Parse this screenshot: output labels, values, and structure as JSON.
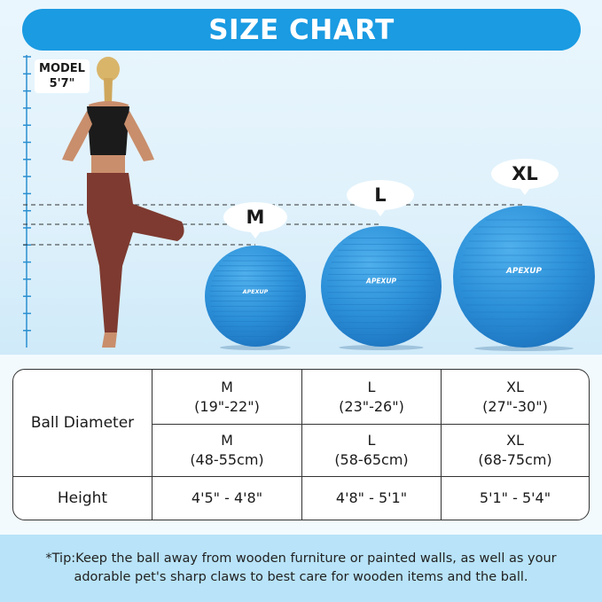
{
  "banner": {
    "title": "SIZE CHART"
  },
  "model": {
    "label": "MODEL",
    "height": "5'7\""
  },
  "balls": [
    {
      "size": "M",
      "brand": "APEXUP"
    },
    {
      "size": "L",
      "brand": "APEXUP"
    },
    {
      "size": "XL",
      "brand": "APEXUP"
    }
  ],
  "table": {
    "row_headers": [
      "Ball Diameter",
      "Height"
    ],
    "inches": [
      {
        "size": "M",
        "range": "(19\"-22\")"
      },
      {
        "size": "L",
        "range": "(23\"-26\")"
      },
      {
        "size": "XL",
        "range": "(27\"-30\")"
      }
    ],
    "cm": [
      {
        "size": "M",
        "range": "(48-55cm)"
      },
      {
        "size": "L",
        "range": "(58-65cm)"
      },
      {
        "size": "XL",
        "range": "(68-75cm)"
      }
    ],
    "heights": [
      "4'5\" - 4'8\"",
      "4'8\" - 5'1\"",
      "5'1\" - 5'4\""
    ]
  },
  "tip": "*Tip:Keep the ball away from wooden furniture or painted walls, as well as your adorable pet's sharp claws to best care for wooden items and the ball.",
  "colors": {
    "banner": "#1a9be2",
    "ball": "#2b8fd8",
    "tip_band": "#b8e3f8"
  }
}
